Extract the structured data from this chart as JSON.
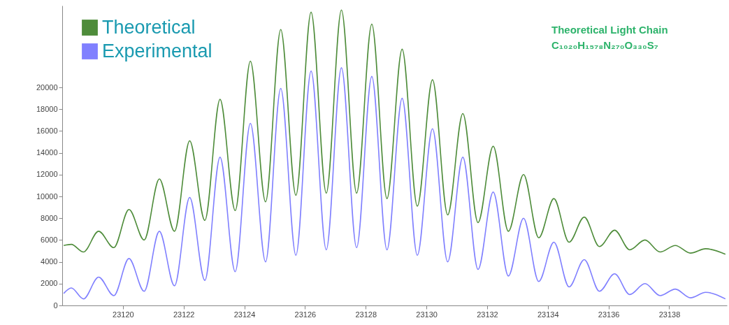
{
  "chart_data": {
    "type": "line",
    "annotations": [
      "Theoretical Light Chain",
      "C₁₀₂₀H₁₅₇₈N₂₇₀O₃₃₀S₇"
    ],
    "series": [
      {
        "name": "Theoretical",
        "color": "#4e8c3a",
        "x": [
          23118.05,
          23118.3,
          23118.7,
          23119.2,
          23119.7,
          23120.2,
          23120.7,
          23121.2,
          23121.7,
          23122.2,
          23122.7,
          23123.2,
          23123.7,
          23124.2,
          23124.7,
          23125.2,
          23125.7,
          23126.2,
          23126.7,
          23127.2,
          23127.7,
          23128.2,
          23128.7,
          23129.2,
          23129.7,
          23130.2,
          23130.7,
          23131.2,
          23131.7,
          23132.2,
          23132.7,
          23133.2,
          23133.7,
          23134.2,
          23134.7,
          23135.2,
          23135.7,
          23136.2,
          23136.7,
          23137.2,
          23137.7,
          23138.2,
          23138.7,
          23139.2,
          23139.85
        ],
        "values": [
          5500,
          5600,
          4900,
          6800,
          5300,
          8800,
          6000,
          11600,
          6800,
          15100,
          7800,
          18900,
          8700,
          22400,
          9500,
          25300,
          10100,
          26900,
          10300,
          27100,
          10300,
          25800,
          9800,
          23500,
          9100,
          20700,
          8300,
          17600,
          7600,
          14600,
          6800,
          12000,
          6200,
          9800,
          5800,
          8100,
          5400,
          6900,
          5100,
          6000,
          4900,
          5500,
          4800,
          5200,
          4700
        ]
      },
      {
        "name": "Experimental",
        "color": "#8080ff",
        "x": [
          23118.05,
          23118.3,
          23118.7,
          23119.2,
          23119.7,
          23120.2,
          23120.7,
          23121.2,
          23121.7,
          23122.2,
          23122.7,
          23123.2,
          23123.7,
          23124.2,
          23124.7,
          23125.2,
          23125.7,
          23126.2,
          23126.7,
          23127.2,
          23127.7,
          23128.2,
          23128.7,
          23129.2,
          23129.7,
          23130.2,
          23130.7,
          23131.2,
          23131.7,
          23132.2,
          23132.7,
          23133.2,
          23133.7,
          23134.2,
          23134.7,
          23135.2,
          23135.7,
          23136.2,
          23136.7,
          23137.2,
          23137.7,
          23138.2,
          23138.7,
          23139.2,
          23139.85
        ],
        "values": [
          1100,
          1600,
          600,
          2600,
          900,
          4300,
          1300,
          6800,
          1800,
          9900,
          2300,
          13600,
          3100,
          16700,
          4000,
          19900,
          4600,
          21500,
          5100,
          21800,
          5300,
          21000,
          5100,
          19000,
          4600,
          16200,
          4000,
          13600,
          3300,
          10400,
          2700,
          8000,
          2200,
          5800,
          1700,
          4200,
          1300,
          2900,
          1000,
          2000,
          900,
          1500,
          700,
          1200,
          600
        ]
      }
    ],
    "xlim": [
      23118,
      23139.9
    ],
    "xticks": [
      23120,
      23122,
      23124,
      23126,
      23128,
      23130,
      23132,
      23134,
      23136,
      23138
    ],
    "ylim": [
      0,
      27500
    ],
    "yticks": [
      0,
      2000,
      4000,
      6000,
      8000,
      10000,
      12000,
      14000,
      16000,
      18000,
      20000
    ],
    "grid": false,
    "legend": "top left",
    "marker": "none",
    "line_style": "solid"
  }
}
